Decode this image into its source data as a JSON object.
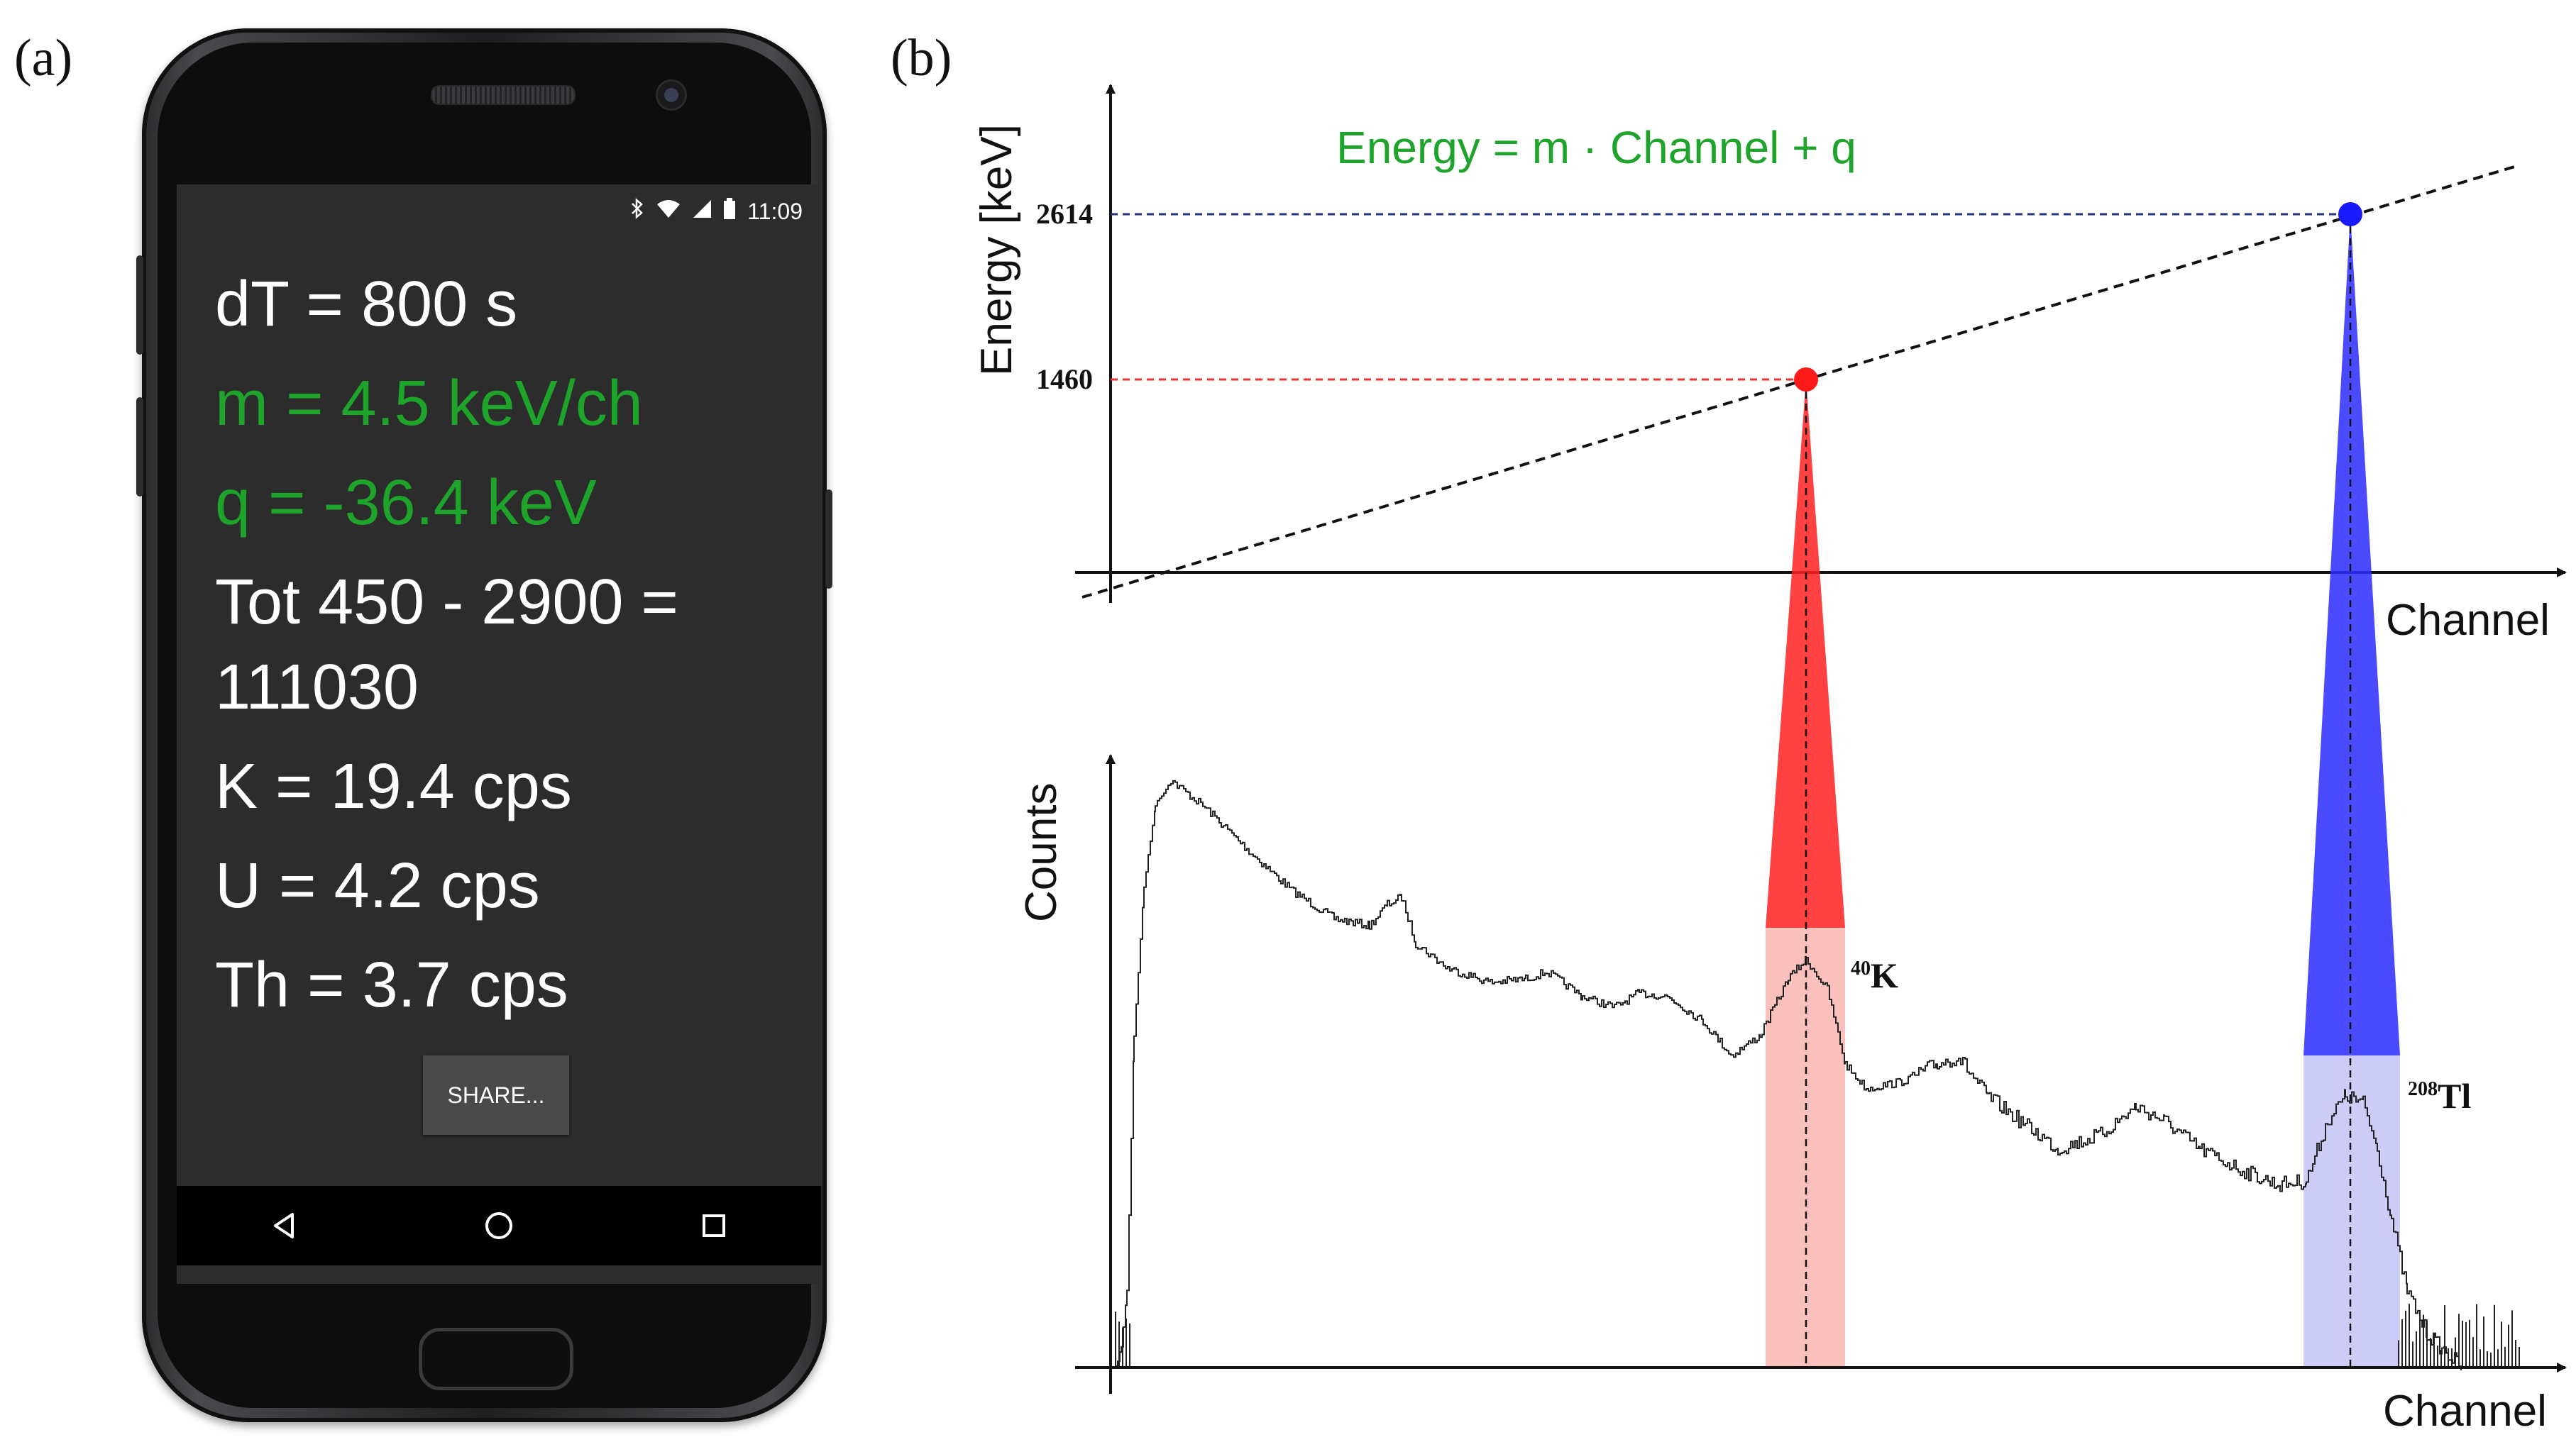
{
  "panels": {
    "a": "(a)",
    "b": "(b)"
  },
  "phone": {
    "status": {
      "time": "11:09",
      "icons": [
        "bluetooth-icon",
        "wifi-icon",
        "signal-icon",
        "battery-icon"
      ]
    },
    "lines": [
      {
        "text": "dT = 800 s",
        "color": "#ffffff"
      },
      {
        "text": "m = 4.5 keV/ch",
        "color": "#1ea42a"
      },
      {
        "text": "q = -36.4 keV",
        "color": "#1ea42a"
      },
      {
        "text": "Tot 450 - 2900 =",
        "color": "#ffffff"
      },
      {
        "text": "111030",
        "color": "#ffffff"
      },
      {
        "text": "K = 19.4 cps",
        "color": "#ffffff"
      },
      {
        "text": "U = 4.2 cps",
        "color": "#ffffff"
      },
      {
        "text": "Th = 3.7 cps",
        "color": "#ffffff"
      }
    ],
    "share_button": "SHARE...",
    "nav": [
      "back-icon",
      "home-icon",
      "recents-icon"
    ]
  },
  "diagram": {
    "equation": "Energy = m · Channel + q",
    "equation_color": "#1ea42a",
    "top_axes": {
      "ylabel": "Energy [keV]",
      "xlabel": "Channel"
    },
    "bottom_axes": {
      "ylabel": "Counts",
      "xlabel": "Channel"
    },
    "calibration_points": [
      {
        "energy_label": "1460",
        "color": "#ff1a1a",
        "isotope_mass": "40",
        "isotope_symbol": "K"
      },
      {
        "energy_label": "2614",
        "color": "#1a1aff",
        "isotope_mass": "208",
        "isotope_symbol": "Tl"
      }
    ],
    "colors": {
      "red": "#ff1a1a",
      "red_band": "#f9b6b0",
      "blue": "#1a1aff",
      "blue_band": "#c6c6f5"
    }
  }
}
